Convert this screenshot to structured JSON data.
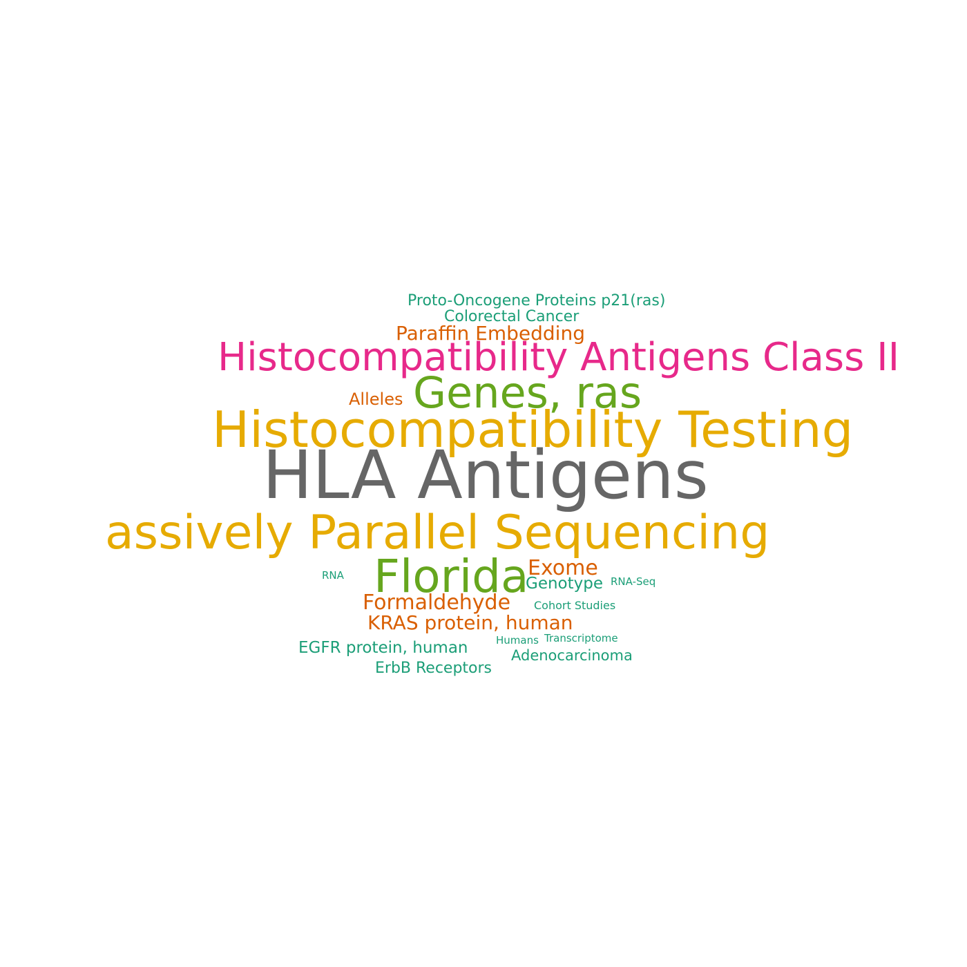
{
  "word_cloud": {
    "palette": {
      "gray": "#666666",
      "gold": "#E6AB02",
      "pink": "#E7298A",
      "green": "#66A61E",
      "orange": "#D95F02",
      "teal": "#1B9E77"
    },
    "words": {
      "hla_antigens": "HLA Antigens",
      "histocompatibility_testing": "Histocompatibility Testing",
      "massively_parallel_sequencing": "assively Parallel Sequencing",
      "histocompatibility_antigens_class_ii": "Histocompatibility Antigens Class II",
      "genes_ras": "Genes, ras",
      "florida": "Florida",
      "exome": "Exome",
      "paraffin_embedding": "Paraffin Embedding",
      "alleles": "Alleles",
      "formaldehyde": "Formaldehyde",
      "kras_protein_human": "KRAS protein, human",
      "proto_oncogene": "Proto-Oncogene Proteins p21(ras)",
      "colorectal_cancer": "Colorectal Cancer",
      "genotype": "Genotype",
      "egfr_protein_human": "EGFR protein, human",
      "erbb_receptors": "ErbB Receptors",
      "adenocarcinoma": "Adenocarcinoma",
      "rna": "RNA",
      "rna_seq": "RNA-Seq",
      "cohort_studies": "Cohort Studies",
      "humans": "Humans",
      "transcriptome": "Transcriptome"
    }
  }
}
